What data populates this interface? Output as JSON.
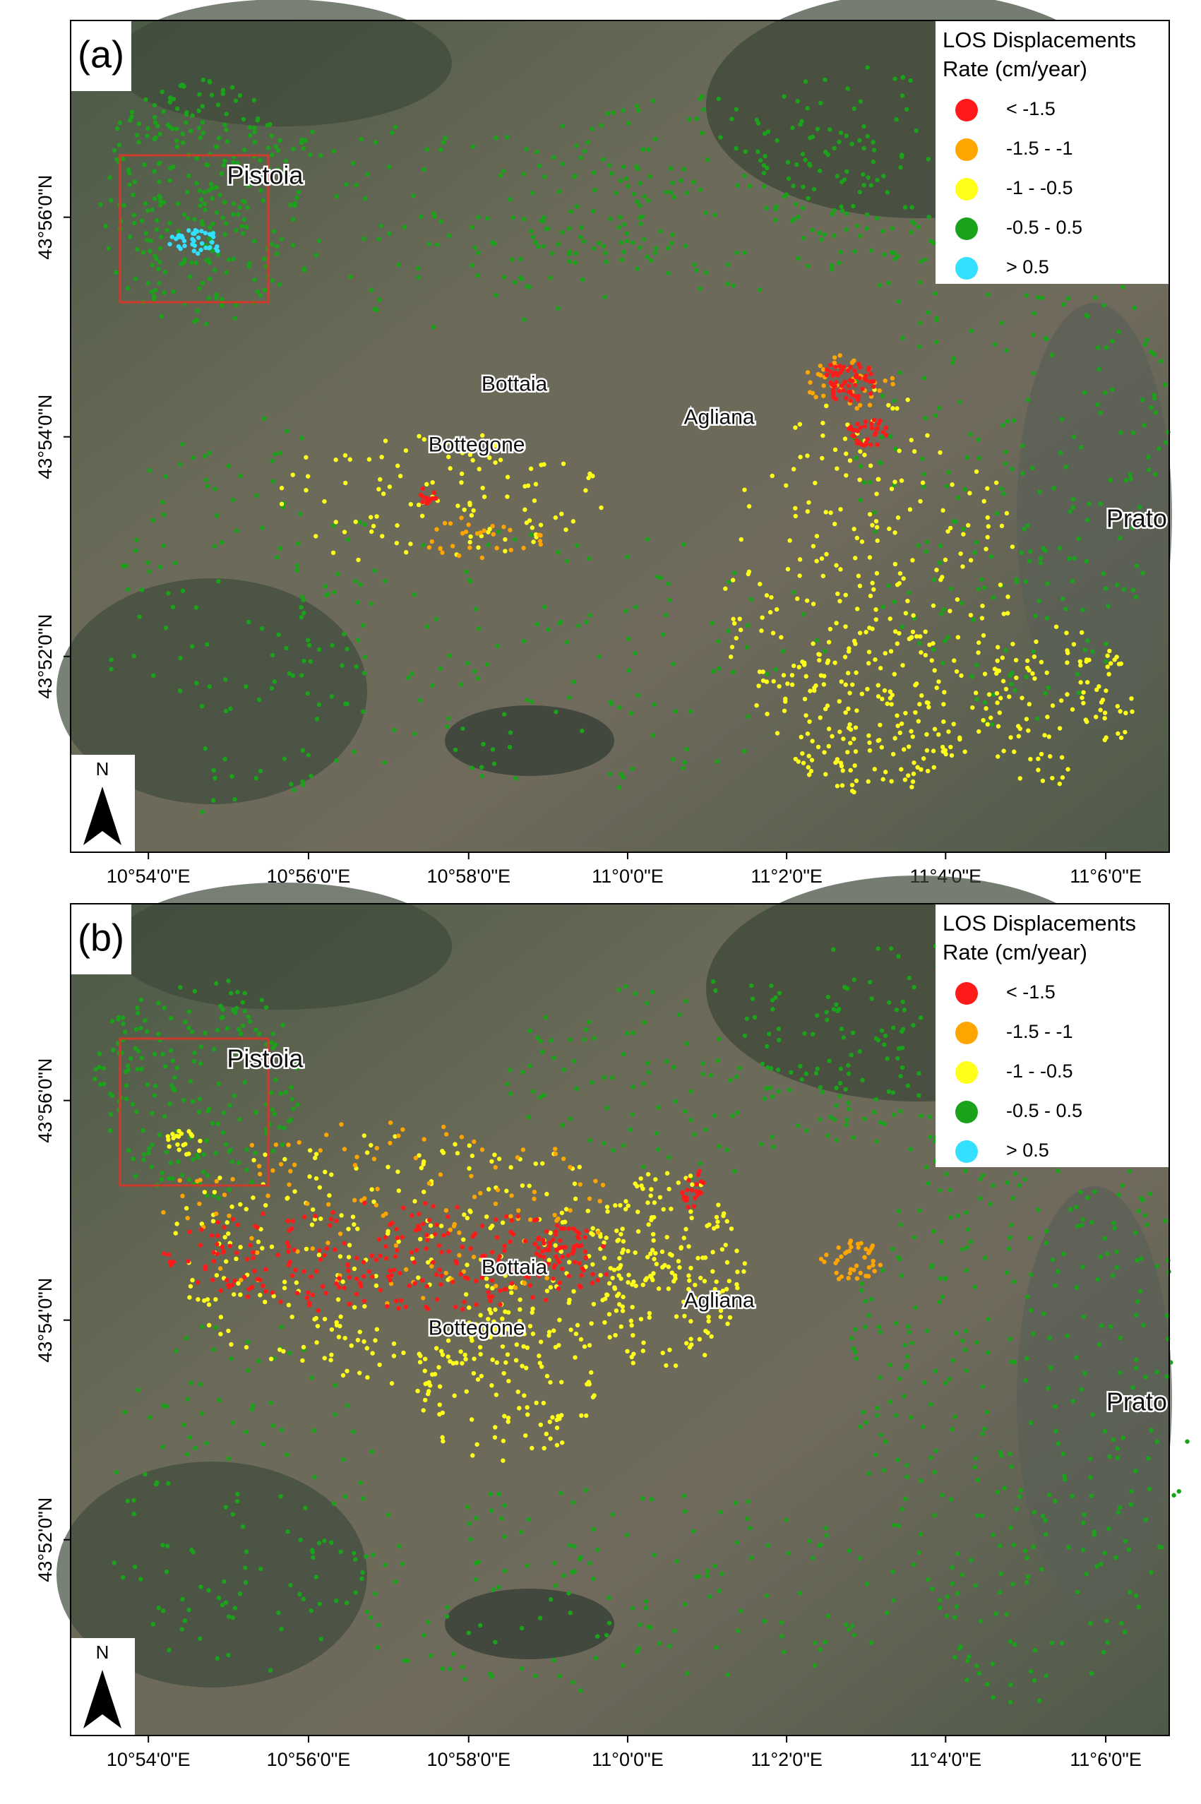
{
  "panels": [
    {
      "label": "(a)",
      "places": [
        "Pistoia",
        "Bottaia",
        "Bottegone",
        "Agliana",
        "Prato"
      ]
    },
    {
      "label": "(b)",
      "places": [
        "Pistoia",
        "Bottaia",
        "Bottegone",
        "Agliana",
        "Prato"
      ]
    }
  ],
  "legend": {
    "title": [
      "LOS Displacements",
      "Rate (cm/year)"
    ],
    "items": [
      {
        "label": "< -1.5",
        "color": "#ff1a1a"
      },
      {
        "label": "-1.5 - -1",
        "color": "#ffa500"
      },
      {
        "label": "-1 - -0.5",
        "color": "#ffff1a"
      },
      {
        "label": "-0.5 - 0.5",
        "color": "#1aa31a"
      },
      {
        "label": "> 0.5",
        "color": "#33e0ff"
      }
    ]
  },
  "north": "N",
  "lon_ticks": [
    "10°54'0\"E",
    "10°56'0\"E",
    "10°58'0\"E",
    "11°0'0\"E",
    "11°2'0\"E",
    "11°4'0\"E",
    "11°6'0\"E"
  ],
  "lat_ticks": [
    "43°56'0\"N",
    "43°54'0\"N",
    "43°52'0\"N"
  ]
}
